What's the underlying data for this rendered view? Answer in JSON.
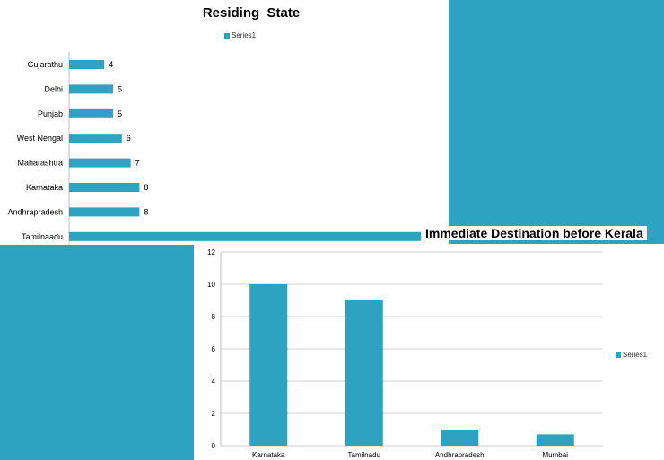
{
  "colors": {
    "bar": "#2ea2c1",
    "background": "#2ea2c1",
    "panel": "#ffffff",
    "grid": "#d0d0d0"
  },
  "chart_data": [
    {
      "type": "bar",
      "orientation": "horizontal",
      "title": "Residing  State",
      "legend": {
        "entries": [
          "Series1"
        ],
        "placement": "top"
      },
      "categories": [
        "Gujarathu",
        "Delhi",
        "Punjab",
        "West Nengal",
        "Maharashtra",
        "Karnataka",
        "Andhrapradesh",
        "Tamilnaadu"
      ],
      "series": [
        {
          "name": "Series1",
          "values": [
            4,
            5,
            5,
            6,
            7,
            8,
            8,
            40
          ]
        }
      ],
      "data_labels": [
        "4",
        "5",
        "5",
        "6",
        "7",
        "8",
        "8",
        ""
      ],
      "xlim": [
        0,
        40
      ]
    },
    {
      "type": "bar",
      "orientation": "vertical",
      "title": "Immediate Destination before Kerala",
      "legend": {
        "entries": [
          "Series1"
        ],
        "placement": "right"
      },
      "categories": [
        "Karnataka",
        "Tamilnadu",
        "Andhrapradesh",
        "Mumbai"
      ],
      "series": [
        {
          "name": "Series1",
          "values": [
            10,
            9,
            1,
            0.7
          ]
        }
      ],
      "ylim": [
        0,
        12
      ],
      "yticks": [
        "0",
        "2",
        "4",
        "6",
        "8",
        "10",
        "12"
      ],
      "grid": true
    }
  ]
}
